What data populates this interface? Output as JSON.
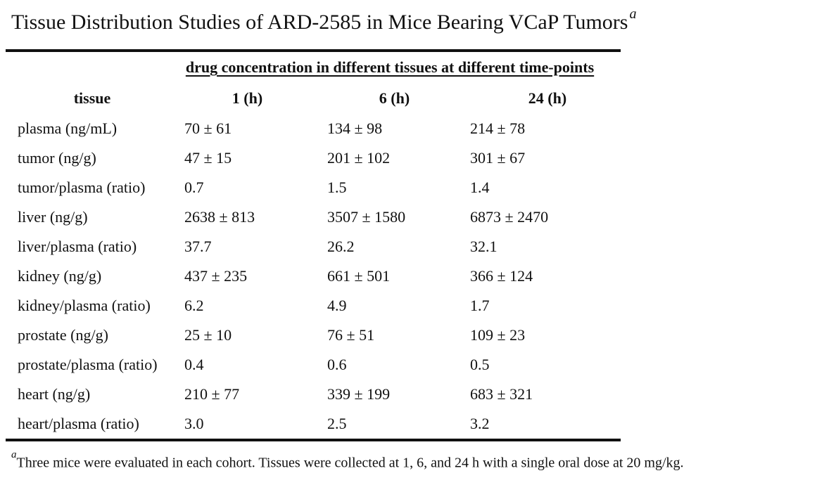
{
  "title": {
    "text": "Tissue Distribution Studies of ARD-2585 in Mice Bearing VCaP Tumors",
    "superscript": "a"
  },
  "table": {
    "spanner": "drug concentration in different tissues at different time-points",
    "columns": [
      "tissue",
      "1 (h)",
      "6 (h)",
      "24 (h)"
    ],
    "rows": [
      {
        "tissue": "plasma (ng/mL)",
        "values": [
          "70 ± 61",
          "134 ± 98",
          "214 ± 78"
        ]
      },
      {
        "tissue": "tumor (ng/g)",
        "values": [
          "47 ± 15",
          "201 ± 102",
          "301 ± 67"
        ]
      },
      {
        "tissue": "tumor/plasma (ratio)",
        "values": [
          "0.7",
          "1.5",
          "1.4"
        ]
      },
      {
        "tissue": "liver (ng/g)",
        "values": [
          "2638 ± 813",
          "3507 ± 1580",
          "6873 ± 2470"
        ]
      },
      {
        "tissue": "liver/plasma (ratio)",
        "values": [
          "37.7",
          "26.2",
          "32.1"
        ]
      },
      {
        "tissue": "kidney (ng/g)",
        "values": [
          "437 ± 235",
          "661 ± 501",
          "366 ± 124"
        ]
      },
      {
        "tissue": "kidney/plasma (ratio)",
        "values": [
          "6.2",
          "4.9",
          "1.7"
        ]
      },
      {
        "tissue": "prostate (ng/g)",
        "values": [
          "25 ± 10",
          "76 ± 51",
          "109 ± 23"
        ]
      },
      {
        "tissue": "prostate/plasma (ratio)",
        "values": [
          "0.4",
          "0.6",
          "0.5"
        ]
      },
      {
        "tissue": "heart (ng/g)",
        "values": [
          "210 ± 77",
          "339 ± 199",
          "683 ± 321"
        ]
      },
      {
        "tissue": "heart/plasma (ratio)",
        "values": [
          "3.0",
          "2.5",
          "3.2"
        ]
      }
    ]
  },
  "footnote": {
    "marker": "a",
    "text": "Three mice were evaluated in each cohort. Tissues were collected at 1, 6, and 24 h with a single oral dose at 20 mg/kg."
  },
  "colors": {
    "text": "#111111",
    "rule": "#101010",
    "background": "#ffffff"
  }
}
